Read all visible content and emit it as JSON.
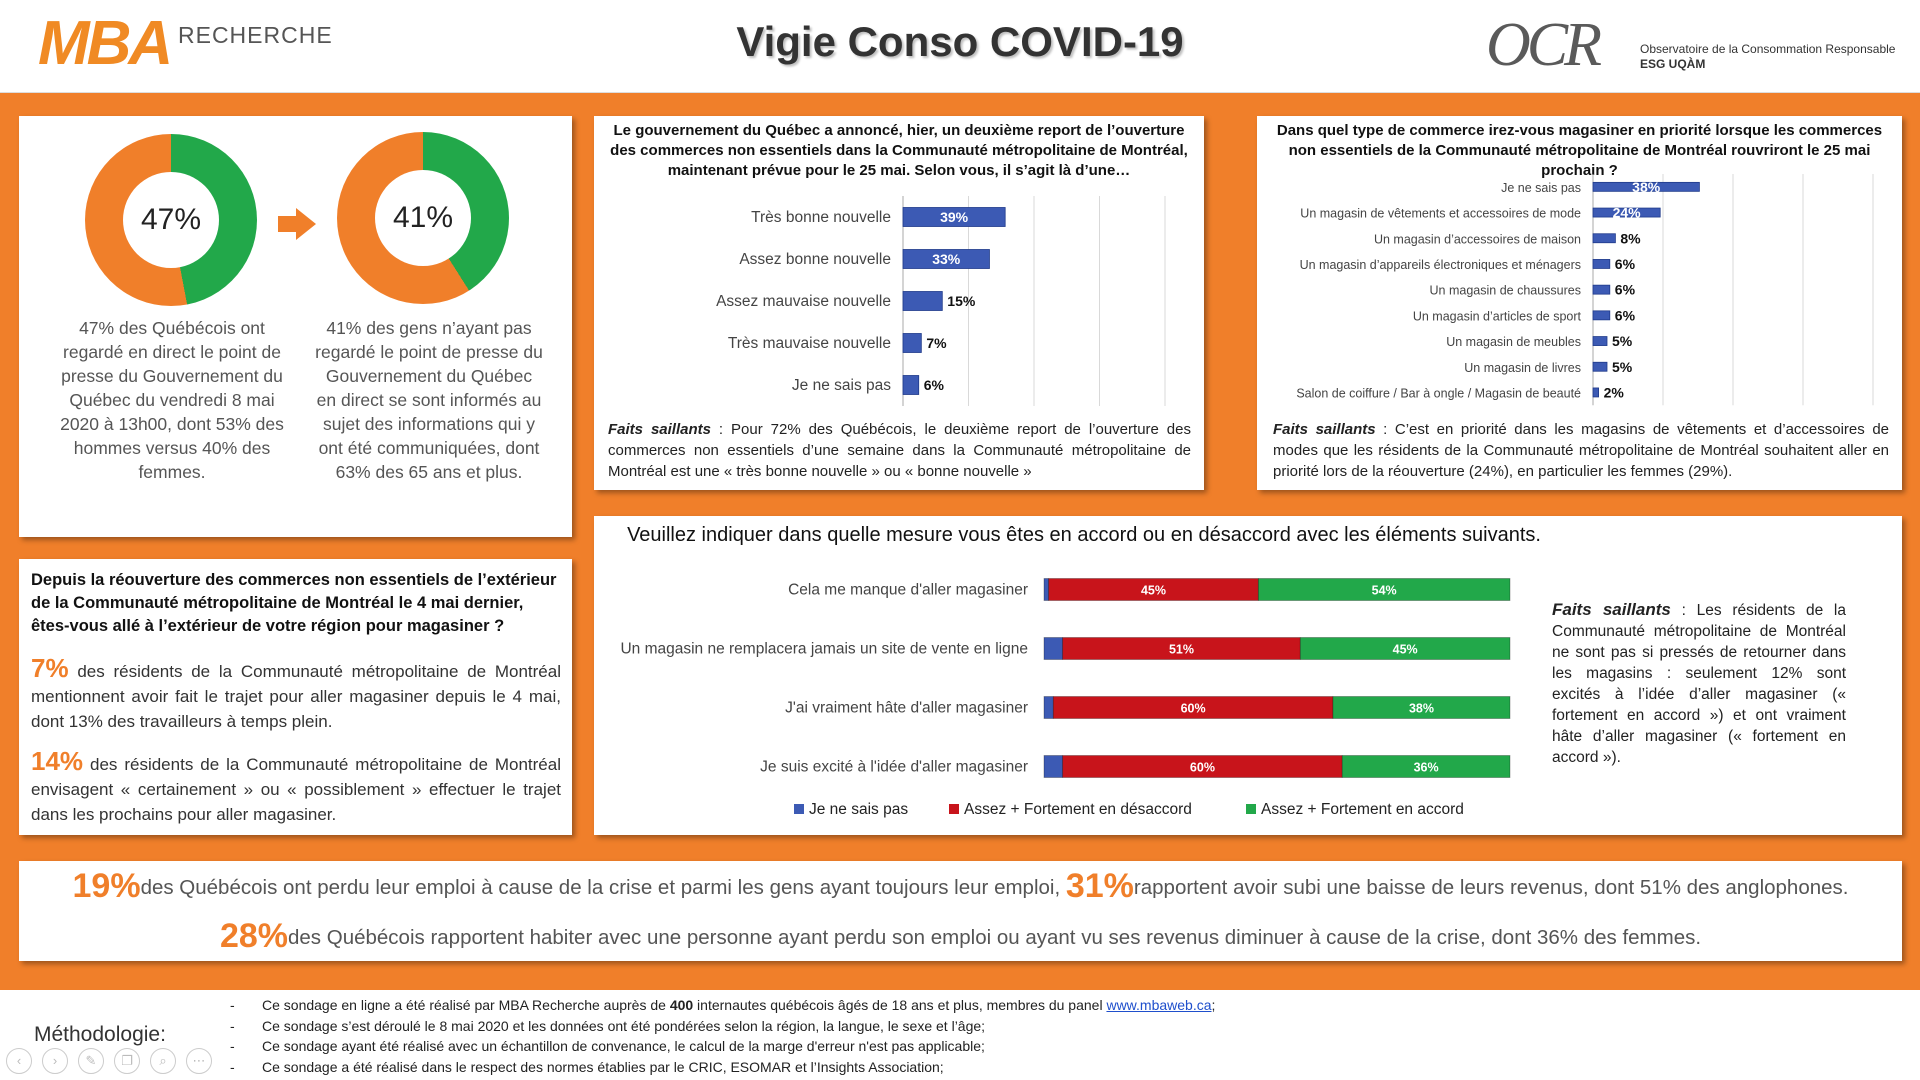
{
  "header": {
    "brand_left": "MBA",
    "brand_left_sub": "RECHERCHE",
    "title": "Vigie Conso COVID-19",
    "brand_right": "OCR",
    "brand_right_line1": "Observatoire de la Consommation Responsable",
    "brand_right_line2": "ESG UQÀM"
  },
  "colors": {
    "orange": "#f07f2a",
    "green": "#22a84a",
    "red": "#c8141b",
    "blue": "#3c5ab4"
  },
  "donuts": [
    {
      "value": 47,
      "label": "47%",
      "text": "47% des Québécois ont regardé en direct le point de presse du Gouvernement du Québec du vendredi 8 mai 2020 à 13h00, dont 53% des hommes versus 40% des femmes."
    },
    {
      "value": 41,
      "label": "41%",
      "text": "41% des gens n’ayant pas regardé le point de presse du Gouvernement du Québec en direct se sont informés au sujet des informations qui y ont été communiquées, dont 63% des 65 ans et plus."
    }
  ],
  "announce": {
    "title": "Le gouvernement du Québec a annoncé, hier, un deuxième report de l’ouverture des commerces non essentiels dans la Communauté métropolitaine de Montréal, maintenant prévue pour le 25 mai. Selon vous, il s’agit là d’une…",
    "faits_label": "Faits saillants",
    "faits_text": " : Pour 72% des Québécois, le deuxième report de l’ouverture des commerces non essentiels d’une semaine dans la Communauté métropolitaine de Montréal est une « très bonne nouvelle » ou « bonne nouvelle »"
  },
  "commerce": {
    "title": "Dans quel type de commerce irez-vous magasiner en priorité lorsque les commerces non essentiels de la Communauté métropolitaine de Montréal rouvriront le 25 mai prochain ?",
    "faits_label": "Faits saillants",
    "faits_text": " : C’est en priorité dans les magasins de vêtements et d’accessoires de modes que les résidents de la Communauté métropolitaine de Montréal souhaitent aller en priorité lors de la réouverture (24%), en particulier les femmes (29%)."
  },
  "travel": {
    "question": "Depuis la réouverture des commerces non essentiels de l’extérieur de la Communauté métropolitaine de Montréal le 4 mai dernier, êtes-vous allé à l’extérieur de votre région pour magasiner ?",
    "stat1_value": "7%",
    "stat1_text": " des résidents de la Communauté métropolitaine de Montréal mentionnent avoir fait le trajet pour aller magasiner depuis le 4 mai, dont 13% des travailleurs à temps plein.",
    "stat2_value": "14%",
    "stat2_text": " des résidents de la Communauté métropolitaine de Montréal envisagent « certainement » ou « possiblement » effectuer le trajet dans les prochains pour aller magasiner."
  },
  "agree": {
    "title": "Veuillez indiquer dans quelle mesure vous êtes en accord ou en désaccord avec les éléments suivants.",
    "faits_label": "Faits saillants",
    "faits_text": " : Les résidents de la Communauté métropolitaine de Montréal ne sont pas si pressés de retourner dans les magasins : seulement 12% sont excités à l’idée d’aller magasiner (« fortement en accord ») et ont vraiment hâte d’aller magasiner (« fortement en accord »)."
  },
  "stats": {
    "s1_value": "19%",
    "s1_text": "des Québécois ont perdu leur emploi à cause de la crise et parmi les gens ayant toujours leur emploi,",
    "s2_value": "31%",
    "s2_text": "rapportent avoir subi une baisse de leurs revenus, dont 51% des anglophones.",
    "s3_value": "28%",
    "s3_text": "des Québécois rapportent habiter avec une personne ayant perdu son emploi ou ayant vu ses revenus diminuer à cause de la crise, dont 36% des femmes."
  },
  "methodology": {
    "label": "Méthodologie:",
    "dash": "-",
    "item1_a": "Ce sondage en ligne a été réalisé par MBA Recherche auprès de ",
    "item1_b": "400",
    "item1_c": " internautes québécois âgés de 18 ans et plus, membres du panel ",
    "item1_link": "www.mbaweb.ca",
    "item1_d": ";",
    "item2": "Ce sondage s’est déroulé le 8 mai 2020 et les données ont été pondérées selon la région, la langue, le sexe et l’âge;",
    "item3": "Ce sondage ayant été réalisé avec un échantillon de convenance, le calcul de la marge d'erreur n'est pas applicable;",
    "item4": "Ce sondage a été réalisé dans le respect des normes établies par le CRIC, ESOMAR et l’Insights Association;"
  },
  "nav_icons": [
    "back-icon",
    "forward-icon",
    "pen-icon",
    "copy-icon",
    "zoom-icon",
    "more-icon"
  ],
  "chart_data": [
    {
      "type": "pie",
      "categories": [
        "",
        ""
      ],
      "values": [
        47,
        53
      ],
      "colors": [
        "#22a84a",
        "#f07f2a"
      ]
    },
    {
      "type": "pie",
      "categories": [
        "",
        ""
      ],
      "values": [
        41,
        59
      ],
      "colors": [
        "#22a84a",
        "#f07f2a"
      ]
    },
    {
      "type": "bar",
      "orientation": "horizontal",
      "categories": [
        "Très bonne nouvelle",
        "Assez bonne nouvelle",
        "Assez mauvaise nouvelle",
        "Très mauvaise nouvelle",
        "Je ne sais pas"
      ],
      "values": [
        39,
        33,
        15,
        7,
        6
      ],
      "labels": [
        "39%",
        "33%",
        "15%",
        "7%",
        "6%"
      ],
      "xlim": [
        0,
        100
      ],
      "grid": true
    },
    {
      "type": "bar",
      "orientation": "horizontal",
      "categories": [
        "Je ne sais pas",
        "Un magasin de vêtements et accessoires de mode",
        "Un magasin d’accessoires de maison",
        "Un magasin d’appareils électroniques et ménagers",
        "Un magasin de chaussures",
        "Un magasin d’articles de sport",
        "Un magasin de meubles",
        "Un magasin de livres",
        "Salon de coiffure / Bar à ongle / Magasin de beauté"
      ],
      "values": [
        38,
        24,
        8,
        6,
        6,
        6,
        5,
        5,
        2
      ],
      "labels": [
        "38%",
        "24%",
        "8%",
        "6%",
        "6%",
        "6%",
        "5%",
        "5%",
        "2%"
      ],
      "xlim": [
        0,
        100
      ],
      "grid": true
    },
    {
      "type": "bar",
      "orientation": "horizontal",
      "stacked": true,
      "categories": [
        "Cela me manque d'aller magasiner",
        "Un magasin ne remplacera jamais un site de vente en ligne",
        "J'ai vraiment hâte d'aller magasiner",
        "Je suis excité à l'idée d'aller magasiner"
      ],
      "series": [
        {
          "name": "Je ne sais pas",
          "values": [
            1,
            4,
            2,
            4
          ],
          "color": "#3c5ab4"
        },
        {
          "name": "Assez + Fortement en désaccord",
          "values": [
            45,
            51,
            60,
            60
          ],
          "labels": [
            "45%",
            "51%",
            "60%",
            "60%"
          ],
          "color": "#c8141b"
        },
        {
          "name": "Assez + Fortement en accord",
          "values": [
            54,
            45,
            38,
            36
          ],
          "labels": [
            "54%",
            "45%",
            "38%",
            "36%"
          ],
          "color": "#22a84a"
        }
      ],
      "xlim": [
        0,
        100
      ],
      "legend": "bottom"
    }
  ]
}
